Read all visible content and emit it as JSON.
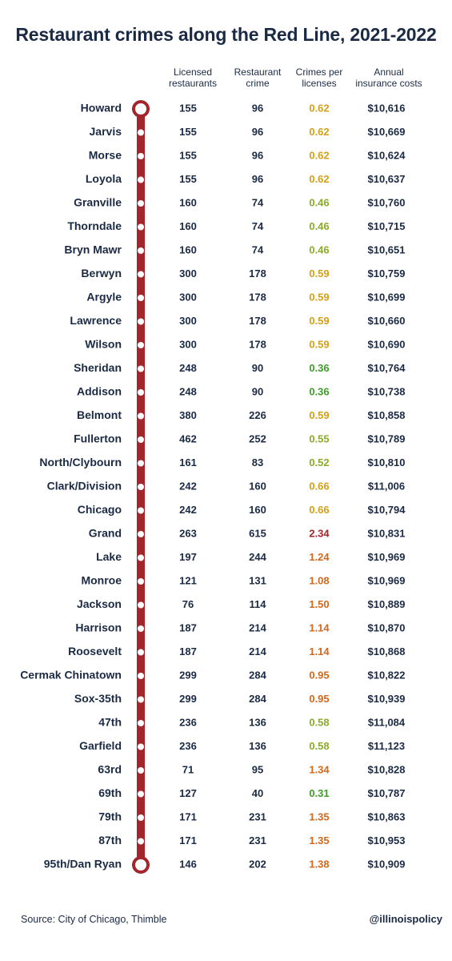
{
  "title": "Restaurant crimes along the Red Line, 2021-2022",
  "columns": {
    "licensed": [
      "Licensed",
      "restaurants"
    ],
    "crime": [
      "Restaurant",
      "crime"
    ],
    "ratio": [
      "Crimes per",
      "licenses"
    ],
    "insurance": [
      "Annual",
      "insurance costs"
    ]
  },
  "colors": {
    "line": "#a3262c",
    "text": "#1b2a44",
    "ratio_green": "#3f9d2a",
    "ratio_lightgreen": "#8bab2a",
    "ratio_yellow": "#d4a018",
    "ratio_orange": "#d2691e",
    "ratio_red": "#a3262c"
  },
  "chart_data": {
    "type": "table",
    "rows": [
      {
        "station": "Howard",
        "licensed": "155",
        "crime": "96",
        "ratio": "0.62",
        "insurance": "$10,616"
      },
      {
        "station": "Jarvis",
        "licensed": "155",
        "crime": "96",
        "ratio": "0.62",
        "insurance": "$10,669"
      },
      {
        "station": "Morse",
        "licensed": "155",
        "crime": "96",
        "ratio": "0.62",
        "insurance": "$10,624"
      },
      {
        "station": "Loyola",
        "licensed": "155",
        "crime": "96",
        "ratio": "0.62",
        "insurance": "$10,637"
      },
      {
        "station": "Granville",
        "licensed": "160",
        "crime": "74",
        "ratio": "0.46",
        "insurance": "$10,760"
      },
      {
        "station": "Thorndale",
        "licensed": "160",
        "crime": "74",
        "ratio": "0.46",
        "insurance": "$10,715"
      },
      {
        "station": "Bryn Mawr",
        "licensed": "160",
        "crime": "74",
        "ratio": "0.46",
        "insurance": "$10,651"
      },
      {
        "station": "Berwyn",
        "licensed": "300",
        "crime": "178",
        "ratio": "0.59",
        "insurance": "$10,759"
      },
      {
        "station": "Argyle",
        "licensed": "300",
        "crime": "178",
        "ratio": "0.59",
        "insurance": "$10,699"
      },
      {
        "station": "Lawrence",
        "licensed": "300",
        "crime": "178",
        "ratio": "0.59",
        "insurance": "$10,660"
      },
      {
        "station": "Wilson",
        "licensed": "300",
        "crime": "178",
        "ratio": "0.59",
        "insurance": "$10,690"
      },
      {
        "station": "Sheridan",
        "licensed": "248",
        "crime": "90",
        "ratio": "0.36",
        "insurance": "$10,764"
      },
      {
        "station": "Addison",
        "licensed": "248",
        "crime": "90",
        "ratio": "0.36",
        "insurance": "$10,738"
      },
      {
        "station": "Belmont",
        "licensed": "380",
        "crime": "226",
        "ratio": "0.59",
        "insurance": "$10,858"
      },
      {
        "station": "Fullerton",
        "licensed": "462",
        "crime": "252",
        "ratio": "0.55",
        "insurance": "$10,789"
      },
      {
        "station": "North/Clybourn",
        "licensed": "161",
        "crime": "83",
        "ratio": "0.52",
        "insurance": "$10,810"
      },
      {
        "station": "Clark/Division",
        "licensed": "242",
        "crime": "160",
        "ratio": "0.66",
        "insurance": "$11,006"
      },
      {
        "station": "Chicago",
        "licensed": "242",
        "crime": "160",
        "ratio": "0.66",
        "insurance": "$10,794"
      },
      {
        "station": "Grand",
        "licensed": "263",
        "crime": "615",
        "ratio": "2.34",
        "insurance": "$10,831"
      },
      {
        "station": "Lake",
        "licensed": "197",
        "crime": "244",
        "ratio": "1.24",
        "insurance": "$10,969"
      },
      {
        "station": "Monroe",
        "licensed": "121",
        "crime": "131",
        "ratio": "1.08",
        "insurance": "$10,969"
      },
      {
        "station": "Jackson",
        "licensed": "76",
        "crime": "114",
        "ratio": "1.50",
        "insurance": "$10,889"
      },
      {
        "station": "Harrison",
        "licensed": "187",
        "crime": "214",
        "ratio": "1.14",
        "insurance": "$10,870"
      },
      {
        "station": "Roosevelt",
        "licensed": "187",
        "crime": "214",
        "ratio": "1.14",
        "insurance": "$10,868"
      },
      {
        "station": "Cermak Chinatown",
        "licensed": "299",
        "crime": "284",
        "ratio": "0.95",
        "insurance": "$10,822"
      },
      {
        "station": "Sox-35th",
        "licensed": "299",
        "crime": "284",
        "ratio": "0.95",
        "insurance": "$10,939"
      },
      {
        "station": "47th",
        "licensed": "236",
        "crime": "136",
        "ratio": "0.58",
        "insurance": "$11,084"
      },
      {
        "station": "Garfield",
        "licensed": "236",
        "crime": "136",
        "ratio": "0.58",
        "insurance": "$11,123"
      },
      {
        "station": "63rd",
        "licensed": "71",
        "crime": "95",
        "ratio": "1.34",
        "insurance": "$10,828"
      },
      {
        "station": "69th",
        "licensed": "127",
        "crime": "40",
        "ratio": "0.31",
        "insurance": "$10,787"
      },
      {
        "station": "79th",
        "licensed": "171",
        "crime": "231",
        "ratio": "1.35",
        "insurance": "$10,863"
      },
      {
        "station": "87th",
        "licensed": "171",
        "crime": "231",
        "ratio": "1.35",
        "insurance": "$10,953"
      },
      {
        "station": "95th/Dan Ryan",
        "licensed": "146",
        "crime": "202",
        "ratio": "1.38",
        "insurance": "$10,909"
      }
    ]
  },
  "footer": {
    "source": "Source: City of Chicago, Thimble",
    "handle": "@illinoispolicy"
  }
}
